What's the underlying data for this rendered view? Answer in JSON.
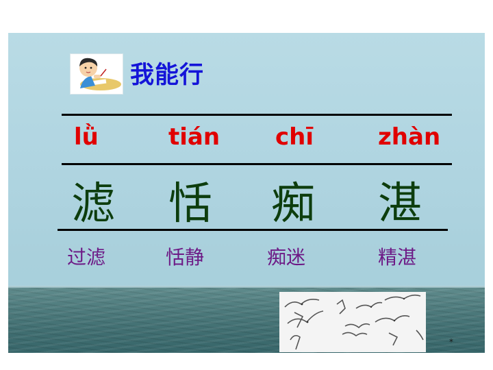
{
  "title": "我能行",
  "pinyin": [
    "lǜ",
    "tián",
    "chī",
    "zhàn"
  ],
  "characters": [
    "滤",
    "恬",
    "痴",
    "湛"
  ],
  "words": [
    "过滤",
    "恬静",
    "痴迷",
    "精湛"
  ],
  "corner_mark": "*",
  "images": {
    "avatar": "student-writing-cartoon",
    "photo": "flying-seagulls"
  },
  "colors": {
    "title": "#1414d8",
    "pinyin": "#e00000",
    "character": "#0d3d0d",
    "word": "#6d1a86"
  }
}
